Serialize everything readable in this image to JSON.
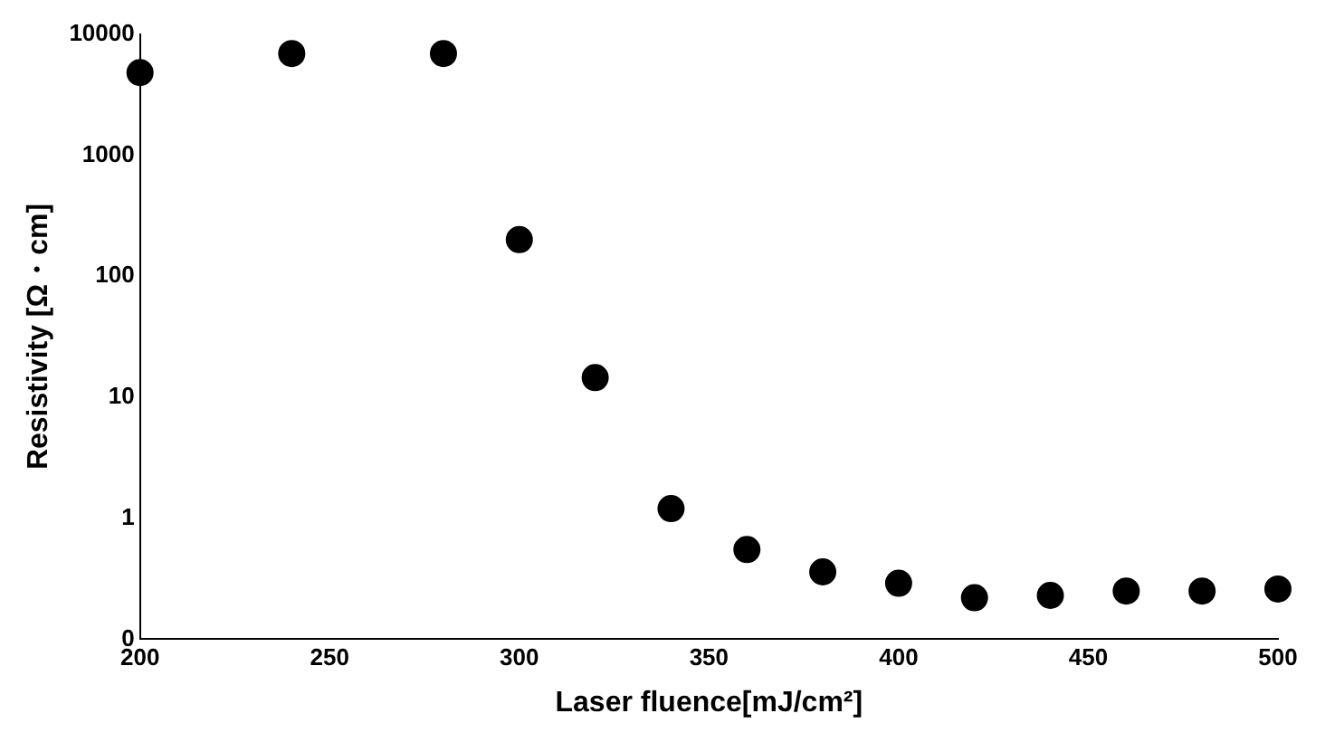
{
  "chart_data": {
    "type": "scatter",
    "xlabel": "Laser fluence[mJ/cm²]",
    "ylabel": "Resistivity [Ω・cm]",
    "log": "y",
    "grid": false,
    "marker": "circle",
    "x": [
      200,
      240,
      280,
      300,
      320,
      340,
      360,
      380,
      400,
      420,
      440,
      460,
      480,
      500
    ],
    "series": [
      {
        "color": "#000000",
        "values": [
          4800,
          6900,
          6900,
          200,
          14.5,
          1.2,
          0.55,
          0.36,
          0.29,
          0.22,
          0.23,
          0.25,
          0.25,
          0.26
        ]
      }
    ],
    "xlim": [
      200,
      500
    ],
    "xticks": [
      200,
      250,
      300,
      350,
      400,
      450,
      500
    ],
    "ylim": [
      0.1,
      10000
    ],
    "yticks": [
      {
        "value": 0.1,
        "label": "0"
      },
      1,
      10,
      100,
      1000,
      10000
    ]
  }
}
